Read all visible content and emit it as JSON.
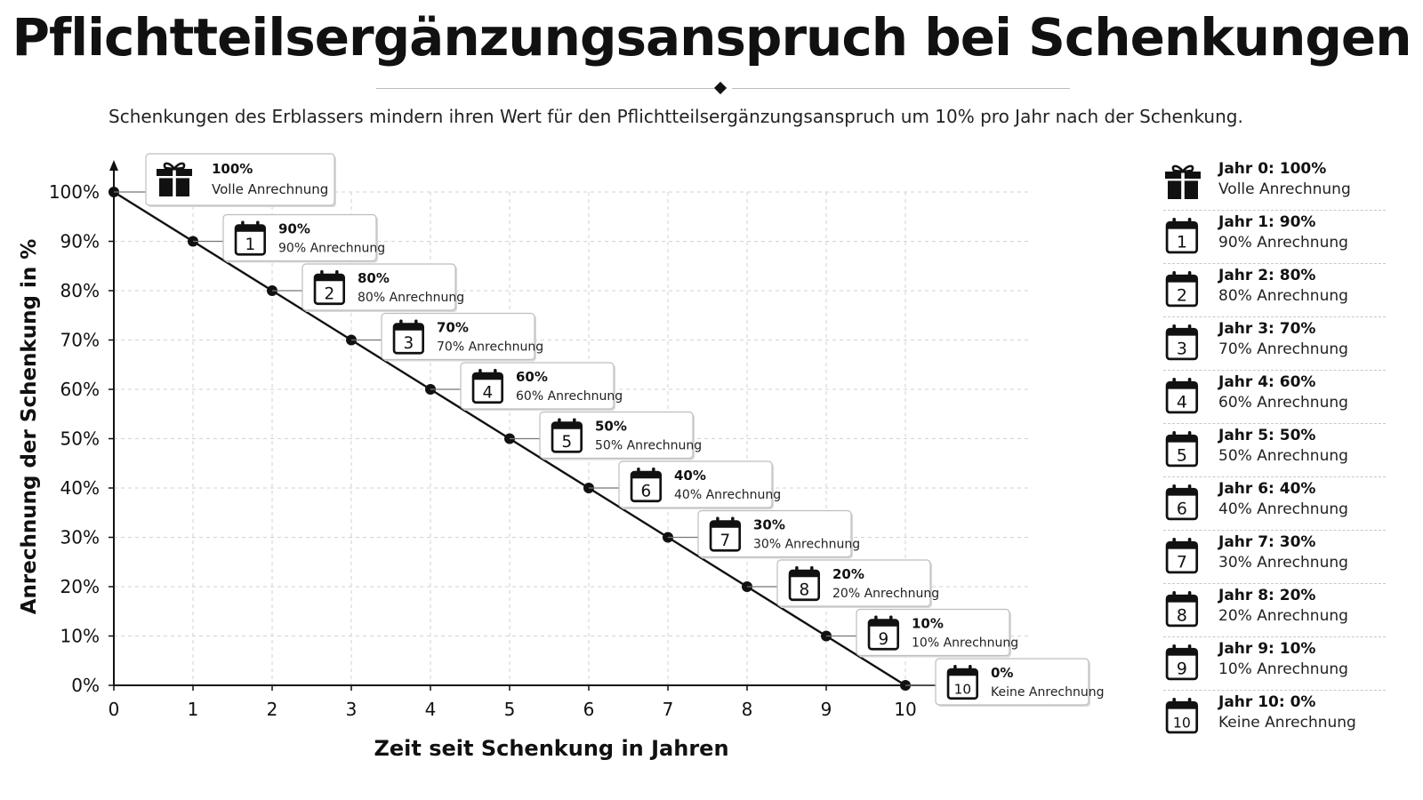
{
  "header": {
    "title": "Pflichtteilsergänzungsanspruch bei Schenkungen",
    "subtitle": "Schenkungen des Erblassers mindern ihren Wert für den Pflichtteilsergänzungsanspruch um 10% pro Jahr nach der Schenkung."
  },
  "colors": {
    "ink": "#111111",
    "grid": "#d2d2d2",
    "callout_border": "#bdbdbd"
  },
  "chart_data": {
    "type": "line",
    "xlabel": "Zeit seit Schenkung in Jahren",
    "ylabel": "Anrechnung der Schenkung in %",
    "xlim": [
      0,
      10
    ],
    "ylim": [
      0,
      100
    ],
    "x_ticks": [
      "0",
      "1",
      "2",
      "3",
      "4",
      "5",
      "6",
      "7",
      "8",
      "9",
      "10"
    ],
    "y_ticks": [
      "0%",
      "10%",
      "20%",
      "30%",
      "40%",
      "50%",
      "60%",
      "70%",
      "80%",
      "90%",
      "100%"
    ],
    "grid": true,
    "x": [
      0,
      1,
      2,
      3,
      4,
      5,
      6,
      7,
      8,
      9,
      10
    ],
    "y": [
      100,
      90,
      80,
      70,
      60,
      50,
      40,
      30,
      20,
      10,
      0
    ],
    "annotations": [
      {
        "x": 0,
        "icon": "gift-icon",
        "badge": "",
        "value": "100%",
        "text": "Volle Anrechnung"
      },
      {
        "x": 1,
        "icon": "calendar-icon",
        "badge": "1",
        "value": "90%",
        "text": "90% Anrechnung"
      },
      {
        "x": 2,
        "icon": "calendar-icon",
        "badge": "2",
        "value": "80%",
        "text": "80% Anrechnung"
      },
      {
        "x": 3,
        "icon": "calendar-icon",
        "badge": "3",
        "value": "70%",
        "text": "70% Anrechnung"
      },
      {
        "x": 4,
        "icon": "calendar-icon",
        "badge": "4",
        "value": "60%",
        "text": "60% Anrechnung"
      },
      {
        "x": 5,
        "icon": "calendar-icon",
        "badge": "5",
        "value": "50%",
        "text": "50% Anrechnung"
      },
      {
        "x": 6,
        "icon": "calendar-icon",
        "badge": "6",
        "value": "40%",
        "text": "40% Anrechnung"
      },
      {
        "x": 7,
        "icon": "calendar-icon",
        "badge": "7",
        "value": "30%",
        "text": "30% Anrechnung"
      },
      {
        "x": 8,
        "icon": "calendar-icon",
        "badge": "8",
        "value": "20%",
        "text": "20% Anrechnung"
      },
      {
        "x": 9,
        "icon": "calendar-icon",
        "badge": "9",
        "value": "10%",
        "text": "10% Anrechnung"
      },
      {
        "x": 10,
        "icon": "calendar-icon",
        "badge": "10",
        "value": "0%",
        "text": "Keine Anrechnung"
      }
    ]
  },
  "legend": [
    {
      "icon": "gift-icon",
      "badge": "",
      "heading": "Jahr 0:  100%",
      "text": "Volle Anrechnung"
    },
    {
      "icon": "calendar-icon",
      "badge": "1",
      "heading": "Jahr 1:  90%",
      "text": "90% Anrechnung"
    },
    {
      "icon": "calendar-icon",
      "badge": "2",
      "heading": "Jahr 2:  80%",
      "text": "80% Anrechnung"
    },
    {
      "icon": "calendar-icon",
      "badge": "3",
      "heading": "Jahr 3:  70%",
      "text": "70% Anrechnung"
    },
    {
      "icon": "calendar-icon",
      "badge": "4",
      "heading": "Jahr 4:  60%",
      "text": "60% Anrechnung"
    },
    {
      "icon": "calendar-icon",
      "badge": "5",
      "heading": "Jahr 5:  50%",
      "text": "50% Anrechnung"
    },
    {
      "icon": "calendar-icon",
      "badge": "6",
      "heading": "Jahr 6:  40%",
      "text": "40% Anrechnung"
    },
    {
      "icon": "calendar-icon",
      "badge": "7",
      "heading": "Jahr 7:  30%",
      "text": "30% Anrechnung"
    },
    {
      "icon": "calendar-icon",
      "badge": "8",
      "heading": "Jahr 8:  20%",
      "text": "20% Anrechnung"
    },
    {
      "icon": "calendar-icon",
      "badge": "9",
      "heading": "Jahr 9:  10%",
      "text": "10% Anrechnung"
    },
    {
      "icon": "calendar-icon",
      "badge": "10",
      "heading": "Jahr 10:  0%",
      "text": "Keine Anrechnung"
    }
  ]
}
